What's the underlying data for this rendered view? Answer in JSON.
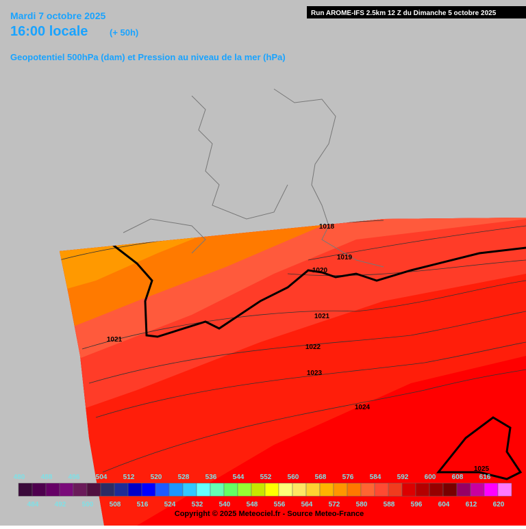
{
  "header": {
    "date": "Mardi 7 octobre 2025",
    "time": "16:00 locale",
    "lead": "(+ 50h)",
    "subtitle": "Geopotentiel 500hPa (dam) et Pression au niveau de la mer (hPa)",
    "run": "Run AROME-IFS 2.5km 12 Z du Dimanche 5 octobre 2025"
  },
  "isobars": [
    "1018",
    "1019",
    "1020",
    "1021",
    "1021",
    "1022",
    "1023",
    "1024",
    "1025"
  ],
  "legend": {
    "values": [
      480,
      484,
      488,
      492,
      496,
      500,
      504,
      508,
      512,
      516,
      520,
      524,
      528,
      532,
      536,
      540,
      544,
      548,
      552,
      556,
      560,
      564,
      568,
      572,
      576,
      580,
      584,
      588,
      592,
      596,
      600,
      604,
      608,
      612,
      616,
      620
    ],
    "colors": [
      "#3a0a3a",
      "#4e004e",
      "#660066",
      "#7a0a7a",
      "#6a1a5a",
      "#501040",
      "#2c2c64",
      "#1e2c96",
      "#0000c8",
      "#0000ff",
      "#1e5aff",
      "#1e96ff",
      "#32c8ff",
      "#64ffff",
      "#64ffb4",
      "#64ff64",
      "#96ff32",
      "#c8e600",
      "#ffff00",
      "#ffff78",
      "#ffe664",
      "#ffd232",
      "#ffb400",
      "#ff9600",
      "#ff7800",
      "#ff6432",
      "#ff4a32",
      "#f03c1e",
      "#dc0000",
      "#b40000",
      "#960000",
      "#780000",
      "#960064",
      "#c800a0",
      "#ff00ff",
      "#ff78ff"
    ]
  },
  "copyright": "Copyright © 2025 Meteociel.fr - Source Meteo-France"
}
